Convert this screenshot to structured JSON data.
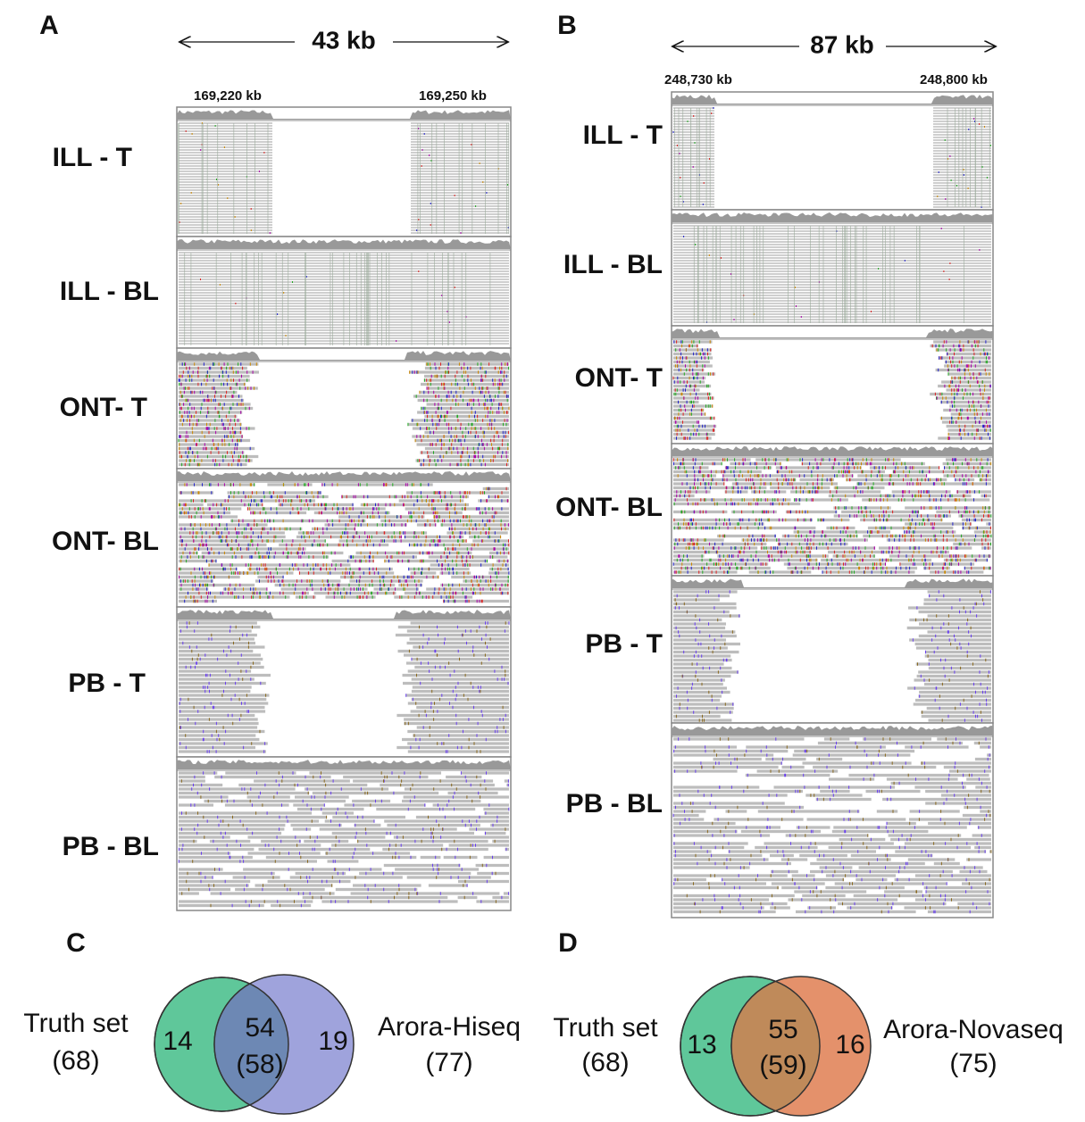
{
  "panel_a": {
    "letter": "A",
    "span": "43 kb",
    "coords": [
      "169,220 kb",
      "169,250 kb"
    ],
    "tracks": [
      "ILL - T",
      "ILL - BL",
      "ONT- T",
      "ONT- BL",
      "PB - T",
      "PB - BL"
    ]
  },
  "panel_b": {
    "letter": "B",
    "span": "87 kb",
    "coords": [
      "248,730 kb",
      "248,800 kb"
    ],
    "tracks": [
      "ILL - T",
      "ILL - BL",
      "ONT- T",
      "ONT- BL",
      "PB - T",
      "PB - BL"
    ]
  },
  "panel_c": {
    "letter": "C",
    "left_label": "Truth set",
    "left_total": "(68)",
    "left_only": "14",
    "overlap": "54",
    "overlap_total": "(58)",
    "right_only": "19",
    "right_label": "Arora-Hiseq",
    "right_total": "(77)"
  },
  "panel_d": {
    "letter": "D",
    "left_label": "Truth set",
    "left_total": "(68)",
    "left_only": "13",
    "overlap": "55",
    "overlap_total": "(59)",
    "right_only": "16",
    "right_label": "Arora-Novaseq",
    "right_total": "(75)"
  }
}
